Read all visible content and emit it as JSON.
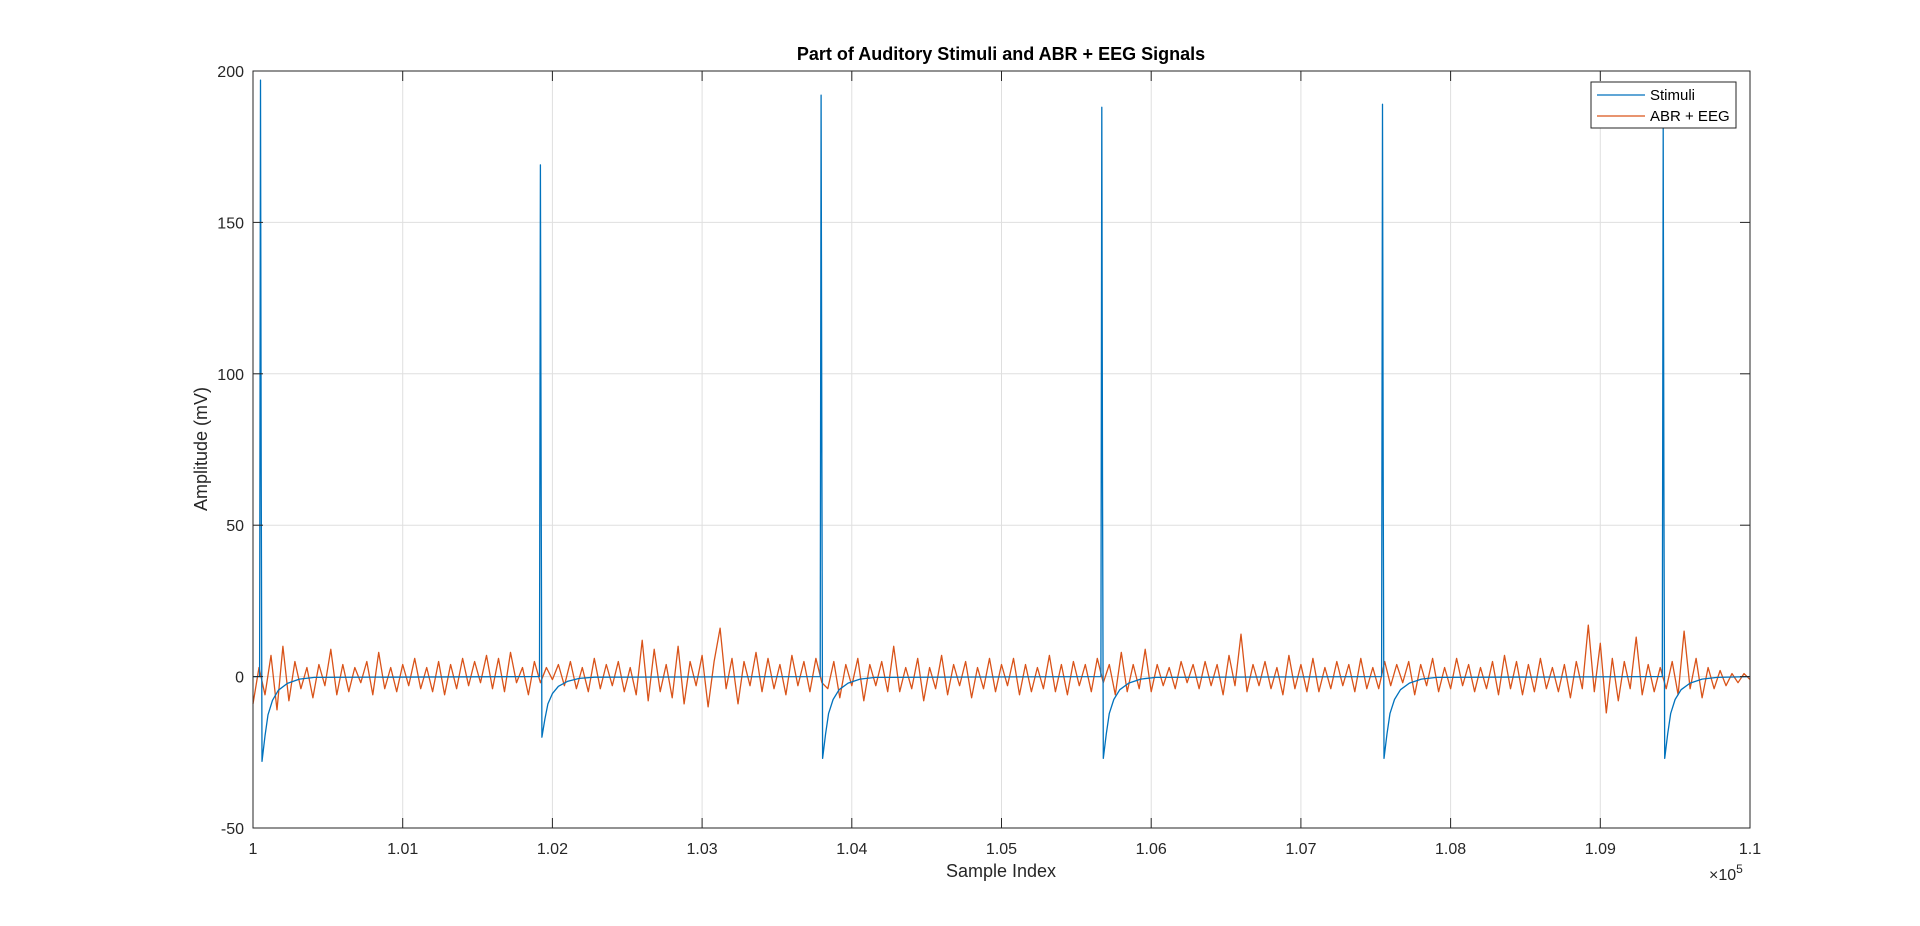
{
  "chart_data": {
    "type": "line",
    "title": "Part of Auditory Stimuli and ABR + EEG Signals",
    "xlabel": "Sample Index",
    "ylabel": "Amplitude (mV)",
    "xlim": [
      100000,
      110000
    ],
    "ylim": [
      -50,
      200
    ],
    "x_exponent_label": "×10",
    "x_exponent": "5",
    "x_ticks": [
      100000,
      101000,
      102000,
      103000,
      104000,
      105000,
      106000,
      107000,
      108000,
      109000,
      110000
    ],
    "x_tick_labels": [
      "1",
      "1.01",
      "1.02",
      "1.03",
      "1.04",
      "1.05",
      "1.06",
      "1.07",
      "1.08",
      "1.09",
      "1.1"
    ],
    "y_ticks": [
      -50,
      0,
      50,
      100,
      150,
      200
    ],
    "y_tick_labels": [
      "-50",
      "0",
      "50",
      "100",
      "150",
      "200"
    ],
    "grid": true,
    "legend_position": "top-right",
    "series": [
      {
        "name": "Stimuli",
        "color": "#0072BD",
        "kind": "impulse-train",
        "peaks": [
          {
            "x": 100050,
            "y": 197,
            "min": -28
          },
          {
            "x": 101920,
            "y": 169,
            "min": -20
          },
          {
            "x": 103795,
            "y": 192,
            "min": -27
          },
          {
            "x": 105670,
            "y": 188,
            "min": -27
          },
          {
            "x": 107545,
            "y": 189,
            "min": -27
          },
          {
            "x": 109420,
            "y": 181,
            "min": -27
          }
        ]
      },
      {
        "name": "ABR + EEG",
        "color": "#D95319",
        "kind": "noise",
        "points": [
          [
            100000,
            -9
          ],
          [
            100040,
            3
          ],
          [
            100080,
            -6
          ],
          [
            100120,
            7
          ],
          [
            100160,
            -11
          ],
          [
            100200,
            10
          ],
          [
            100240,
            -8
          ],
          [
            100280,
            5
          ],
          [
            100320,
            -4
          ],
          [
            100360,
            3
          ],
          [
            100400,
            -7
          ],
          [
            100440,
            4
          ],
          [
            100480,
            -3
          ],
          [
            100520,
            9
          ],
          [
            100560,
            -6
          ],
          [
            100600,
            4
          ],
          [
            100640,
            -5
          ],
          [
            100680,
            3
          ],
          [
            100720,
            -2
          ],
          [
            100760,
            5
          ],
          [
            100800,
            -6
          ],
          [
            100840,
            8
          ],
          [
            100880,
            -4
          ],
          [
            100920,
            3
          ],
          [
            100960,
            -5
          ],
          [
            101000,
            4
          ],
          [
            101040,
            -3
          ],
          [
            101080,
            6
          ],
          [
            101120,
            -4
          ],
          [
            101160,
            3
          ],
          [
            101200,
            -5
          ],
          [
            101240,
            5
          ],
          [
            101280,
            -6
          ],
          [
            101320,
            4
          ],
          [
            101360,
            -4
          ],
          [
            101400,
            6
          ],
          [
            101440,
            -3
          ],
          [
            101480,
            5
          ],
          [
            101520,
            -2
          ],
          [
            101560,
            7
          ],
          [
            101600,
            -4
          ],
          [
            101640,
            6
          ],
          [
            101680,
            -5
          ],
          [
            101720,
            8
          ],
          [
            101760,
            -2
          ],
          [
            101800,
            3
          ],
          [
            101840,
            -6
          ],
          [
            101880,
            5
          ],
          [
            101920,
            -2
          ],
          [
            101960,
            3
          ],
          [
            102000,
            -1
          ],
          [
            102040,
            4
          ],
          [
            102080,
            -3
          ],
          [
            102120,
            5
          ],
          [
            102160,
            -4
          ],
          [
            102200,
            3
          ],
          [
            102240,
            -5
          ],
          [
            102280,
            6
          ],
          [
            102320,
            -4
          ],
          [
            102360,
            4
          ],
          [
            102400,
            -3
          ],
          [
            102440,
            5
          ],
          [
            102480,
            -5
          ],
          [
            102520,
            3
          ],
          [
            102560,
            -6
          ],
          [
            102600,
            12
          ],
          [
            102640,
            -8
          ],
          [
            102680,
            9
          ],
          [
            102720,
            -5
          ],
          [
            102760,
            4
          ],
          [
            102800,
            -7
          ],
          [
            102840,
            10
          ],
          [
            102880,
            -9
          ],
          [
            102920,
            5
          ],
          [
            102960,
            -3
          ],
          [
            103000,
            7
          ],
          [
            103040,
            -10
          ],
          [
            103080,
            5
          ],
          [
            103120,
            16
          ],
          [
            103160,
            -4
          ],
          [
            103200,
            6
          ],
          [
            103240,
            -9
          ],
          [
            103280,
            5
          ],
          [
            103320,
            -3
          ],
          [
            103360,
            8
          ],
          [
            103400,
            -5
          ],
          [
            103440,
            6
          ],
          [
            103480,
            -4
          ],
          [
            103520,
            4
          ],
          [
            103560,
            -6
          ],
          [
            103600,
            7
          ],
          [
            103640,
            -3
          ],
          [
            103680,
            5
          ],
          [
            103720,
            -5
          ],
          [
            103760,
            6
          ],
          [
            103800,
            -2
          ],
          [
            103840,
            -4
          ],
          [
            103880,
            5
          ],
          [
            103920,
            -7
          ],
          [
            103960,
            4
          ],
          [
            104000,
            -3
          ],
          [
            104040,
            6
          ],
          [
            104080,
            -8
          ],
          [
            104120,
            4
          ],
          [
            104160,
            -3
          ],
          [
            104200,
            5
          ],
          [
            104240,
            -5
          ],
          [
            104280,
            10
          ],
          [
            104320,
            -5
          ],
          [
            104360,
            3
          ],
          [
            104400,
            -4
          ],
          [
            104440,
            6
          ],
          [
            104480,
            -8
          ],
          [
            104520,
            3
          ],
          [
            104560,
            -4
          ],
          [
            104600,
            7
          ],
          [
            104640,
            -6
          ],
          [
            104680,
            4
          ],
          [
            104720,
            -3
          ],
          [
            104760,
            5
          ],
          [
            104800,
            -7
          ],
          [
            104840,
            3
          ],
          [
            104880,
            -4
          ],
          [
            104920,
            6
          ],
          [
            104960,
            -5
          ],
          [
            105000,
            4
          ],
          [
            105040,
            -3
          ],
          [
            105080,
            6
          ],
          [
            105120,
            -6
          ],
          [
            105160,
            4
          ],
          [
            105200,
            -5
          ],
          [
            105240,
            3
          ],
          [
            105280,
            -4
          ],
          [
            105320,
            7
          ],
          [
            105360,
            -5
          ],
          [
            105400,
            4
          ],
          [
            105440,
            -6
          ],
          [
            105480,
            5
          ],
          [
            105520,
            -3
          ],
          [
            105560,
            4
          ],
          [
            105600,
            -5
          ],
          [
            105640,
            6
          ],
          [
            105680,
            -2
          ],
          [
            105720,
            4
          ],
          [
            105760,
            -6
          ],
          [
            105800,
            8
          ],
          [
            105840,
            -5
          ],
          [
            105880,
            4
          ],
          [
            105920,
            -4
          ],
          [
            105960,
            9
          ],
          [
            106000,
            -5
          ],
          [
            106040,
            4
          ],
          [
            106080,
            -3
          ],
          [
            106120,
            3
          ],
          [
            106160,
            -4
          ],
          [
            106200,
            5
          ],
          [
            106240,
            -2
          ],
          [
            106280,
            4
          ],
          [
            106320,
            -4
          ],
          [
            106360,
            5
          ],
          [
            106400,
            -3
          ],
          [
            106440,
            4
          ],
          [
            106480,
            -6
          ],
          [
            106520,
            7
          ],
          [
            106560,
            -3
          ],
          [
            106600,
            14
          ],
          [
            106640,
            -5
          ],
          [
            106680,
            4
          ],
          [
            106720,
            -3
          ],
          [
            106760,
            5
          ],
          [
            106800,
            -4
          ],
          [
            106840,
            3
          ],
          [
            106880,
            -6
          ],
          [
            106920,
            7
          ],
          [
            106960,
            -4
          ],
          [
            107000,
            4
          ],
          [
            107040,
            -5
          ],
          [
            107080,
            6
          ],
          [
            107120,
            -5
          ],
          [
            107160,
            3
          ],
          [
            107200,
            -4
          ],
          [
            107240,
            5
          ],
          [
            107280,
            -3
          ],
          [
            107320,
            4
          ],
          [
            107360,
            -5
          ],
          [
            107400,
            6
          ],
          [
            107440,
            -4
          ],
          [
            107480,
            3
          ],
          [
            107520,
            -4
          ],
          [
            107560,
            5
          ],
          [
            107600,
            -3
          ],
          [
            107640,
            4
          ],
          [
            107680,
            -2
          ],
          [
            107720,
            5
          ],
          [
            107760,
            -6
          ],
          [
            107800,
            4
          ],
          [
            107840,
            -3
          ],
          [
            107880,
            6
          ],
          [
            107920,
            -5
          ],
          [
            107960,
            3
          ],
          [
            108000,
            -4
          ],
          [
            108040,
            6
          ],
          [
            108080,
            -3
          ],
          [
            108120,
            4
          ],
          [
            108160,
            -5
          ],
          [
            108200,
            3
          ],
          [
            108240,
            -4
          ],
          [
            108280,
            5
          ],
          [
            108320,
            -6
          ],
          [
            108360,
            7
          ],
          [
            108400,
            -4
          ],
          [
            108440,
            5
          ],
          [
            108480,
            -6
          ],
          [
            108520,
            4
          ],
          [
            108560,
            -5
          ],
          [
            108600,
            6
          ],
          [
            108640,
            -4
          ],
          [
            108680,
            3
          ],
          [
            108720,
            -5
          ],
          [
            108760,
            4
          ],
          [
            108800,
            -7
          ],
          [
            108840,
            5
          ],
          [
            108880,
            -4
          ],
          [
            108920,
            17
          ],
          [
            108960,
            -5
          ],
          [
            109000,
            11
          ],
          [
            109040,
            -12
          ],
          [
            109080,
            6
          ],
          [
            109120,
            -8
          ],
          [
            109160,
            5
          ],
          [
            109200,
            -4
          ],
          [
            109240,
            13
          ],
          [
            109280,
            -6
          ],
          [
            109320,
            4
          ],
          [
            109360,
            -5
          ],
          [
            109400,
            3
          ],
          [
            109440,
            -4
          ],
          [
            109480,
            5
          ],
          [
            109520,
            -6
          ],
          [
            109560,
            15
          ],
          [
            109600,
            -4
          ],
          [
            109640,
            6
          ],
          [
            109680,
            -7
          ],
          [
            109720,
            3
          ],
          [
            109760,
            -4
          ],
          [
            109800,
            2
          ],
          [
            109840,
            -3
          ],
          [
            109880,
            1
          ],
          [
            109920,
            -2
          ],
          [
            109960,
            1
          ],
          [
            110000,
            -1
          ]
        ]
      }
    ]
  }
}
